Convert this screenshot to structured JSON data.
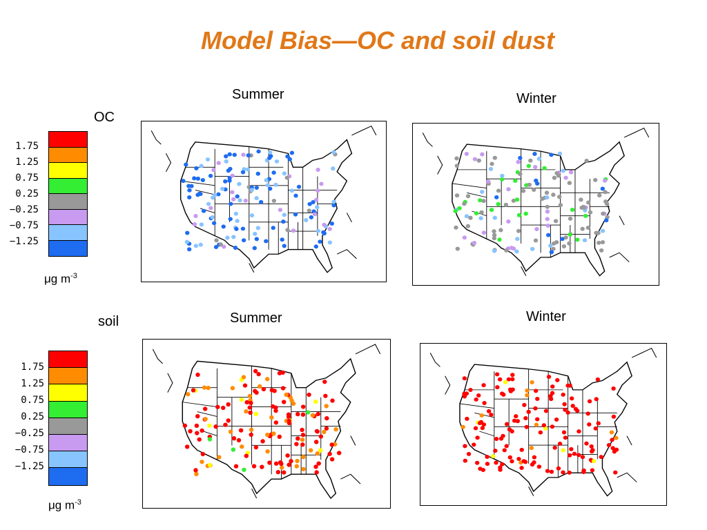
{
  "title": "Model Bias—OC and soil dust",
  "rows": [
    {
      "label": "OC",
      "col_left": "Summer",
      "col_right": "Winter",
      "unit": "μg m",
      "unit_sup": "-3",
      "left_scheme": "summer_oc",
      "right_scheme": "winter_oc"
    },
    {
      "label": "soil",
      "col_left": "Summer",
      "col_right": "Winter",
      "unit": "μg m",
      "unit_sup": "-3",
      "left_scheme": "summer_soil",
      "right_scheme": "winter_soil"
    }
  ],
  "legend": {
    "ticks": [
      "1.75",
      "1.25",
      "0.75",
      "0.25",
      "−0.25",
      "−0.75",
      "−1.25"
    ],
    "colors": [
      "#ff0000",
      "#ff8c00",
      "#ffff00",
      "#33ee33",
      "#999999",
      "#c89af0",
      "#88c4ff",
      "#1e6cf0"
    ]
  }
}
